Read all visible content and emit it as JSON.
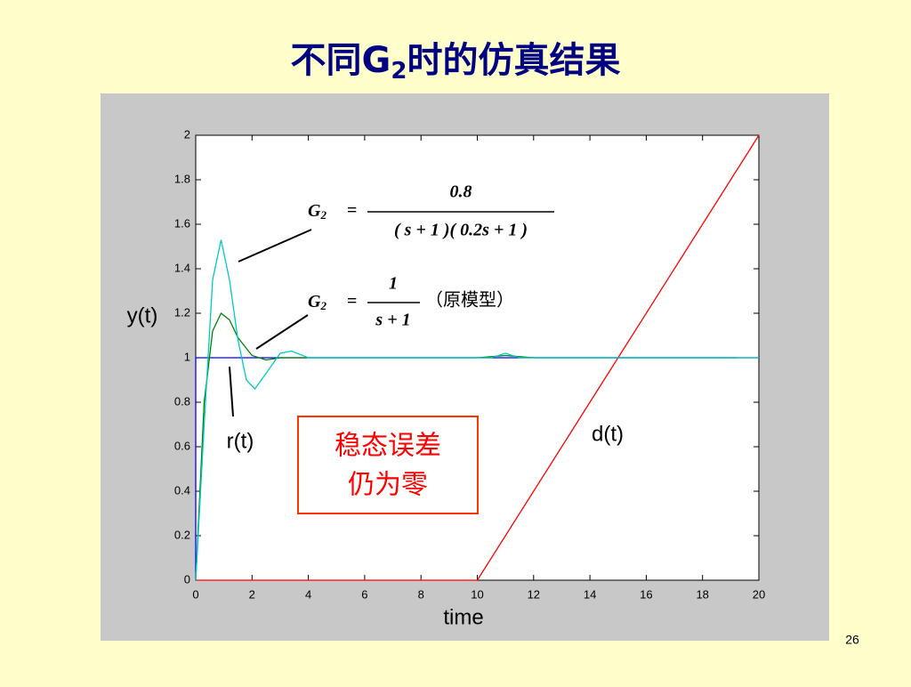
{
  "slide": {
    "title_main": "不同G",
    "title_sub": "2",
    "title_rest": "时的仿真结果",
    "page": "26"
  },
  "chart_data": {
    "type": "line",
    "xlabel": "time",
    "ylabel": "y(t)",
    "xlim": [
      0,
      20
    ],
    "ylim": [
      0,
      2
    ],
    "xticks": [
      0,
      2,
      4,
      6,
      8,
      10,
      12,
      14,
      16,
      18,
      20
    ],
    "yticks": [
      0,
      0.2,
      0.4,
      0.6,
      0.8,
      1,
      1.2,
      1.4,
      1.6,
      1.8,
      2
    ],
    "grid": false,
    "series": [
      {
        "color": "#0000ff",
        "x": [
          0,
          0,
          20
        ],
        "values": [
          0,
          1,
          1
        ]
      },
      {
        "color": "#ff0000",
        "x": [
          0,
          10,
          20
        ],
        "values": [
          0,
          0,
          2
        ]
      },
      {
        "color": "#008000",
        "x": [
          0,
          0.3,
          0.6,
          0.9,
          1.2,
          1.5,
          2,
          2.5,
          3,
          4,
          6,
          8,
          10,
          11,
          12,
          14,
          16,
          18,
          19.2
        ],
        "values": [
          0,
          0.8,
          1.12,
          1.2,
          1.17,
          1.09,
          1.01,
          0.99,
          1.0,
          1.0,
          1,
          1,
          1,
          1.01,
          1,
          1,
          1,
          1,
          1
        ]
      },
      {
        "color": "#00c8c8",
        "x": [
          0,
          0.3,
          0.6,
          0.9,
          1.2,
          1.5,
          1.8,
          2.1,
          2.5,
          3,
          3.4,
          4,
          5,
          10,
          10.5,
          11,
          11.5,
          12,
          13,
          20
        ],
        "values": [
          0,
          0.7,
          1.35,
          1.53,
          1.35,
          1.08,
          0.9,
          0.86,
          0.93,
          1.02,
          1.03,
          1.0,
          1,
          1,
          1,
          1.02,
          1.0,
          1,
          1,
          1
        ]
      }
    ],
    "annotations": {
      "r": "r(t)",
      "d": "d(t)",
      "box_line1": "稳态误差",
      "box_line2": "仍为零"
    },
    "formula1": {
      "lhs": "G",
      "sub": "2",
      "eq": "=",
      "num": "0.8",
      "den": "( s + 1 )( 0.2s + 1 )"
    },
    "formula2": {
      "lhs": "G",
      "sub": "2",
      "eq": "=",
      "num": "1",
      "den": "s + 1",
      "note": "（原模型）"
    }
  }
}
